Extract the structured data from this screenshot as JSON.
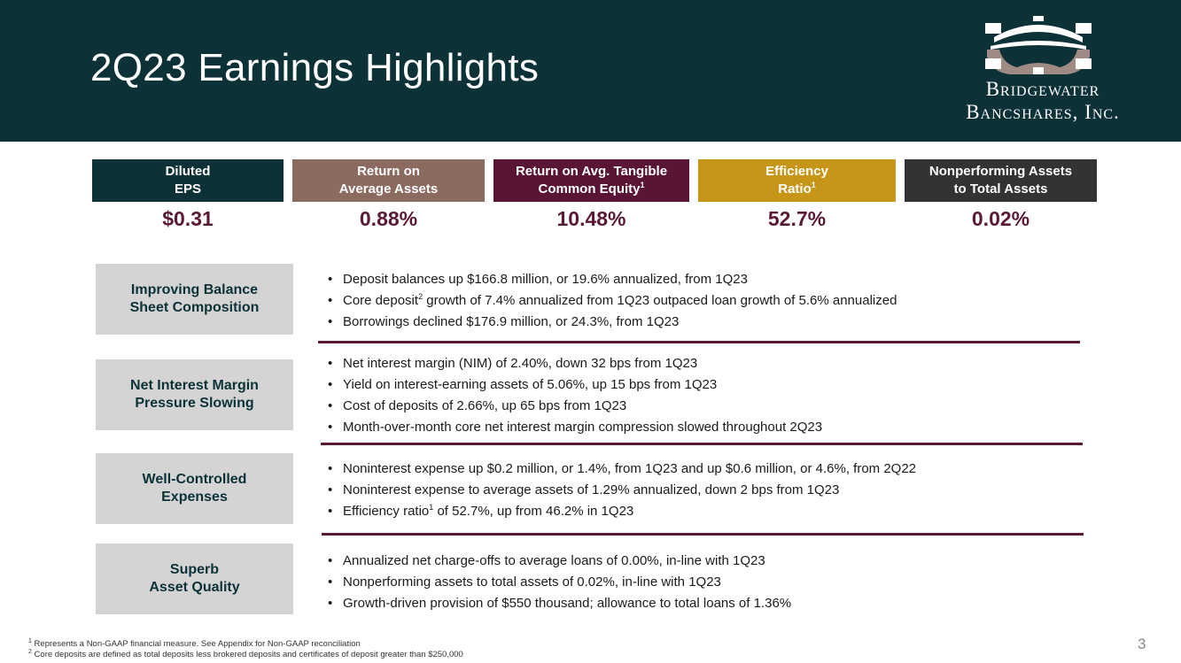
{
  "slide": {
    "title": "2Q23 Earnings Highlights",
    "page_number": "3"
  },
  "logo": {
    "line1": "Bridgewater",
    "line2": "Bancshares, Inc."
  },
  "kpis": [
    {
      "label_line1": "Diluted",
      "label_line2": "EPS",
      "sup": "",
      "value": "$0.31",
      "color": "#0c3238"
    },
    {
      "label_line1": "Return on",
      "label_line2": "Average Assets",
      "sup": "",
      "value": "0.88%",
      "color": "#8b6a5f"
    },
    {
      "label_line1": "Return on Avg. Tangible",
      "label_line2": "Common Equity",
      "sup": "1",
      "value": "10.48%",
      "color": "#5a1536"
    },
    {
      "label_line1": "Efficiency",
      "label_line2": "Ratio",
      "sup": "1",
      "value": "52.7%",
      "color": "#c79518"
    },
    {
      "label_line1": "Nonperforming Assets",
      "label_line2": "to Total Assets",
      "sup": "",
      "value": "0.02%",
      "color": "#333333"
    }
  ],
  "sections": [
    {
      "label_line1": "Improving Balance",
      "label_line2": "Sheet Composition",
      "bullets": [
        {
          "pre": "Deposit balances up $166.8 million, or 19.6% annualized, from 1Q23",
          "sup": "",
          "post": ""
        },
        {
          "pre": "Core deposit",
          "sup": "2",
          "post": " growth of 7.4% annualized from 1Q23 outpaced loan growth of 5.6% annualized"
        },
        {
          "pre": "Borrowings declined $176.9 million, or 24.3%, from 1Q23",
          "sup": "",
          "post": ""
        }
      ]
    },
    {
      "label_line1": "Net Interest Margin",
      "label_line2": "Pressure Slowing",
      "bullets": [
        {
          "pre": "Net interest margin (NIM) of 2.40%, down 32 bps from 1Q23",
          "sup": "",
          "post": ""
        },
        {
          "pre": "Yield on interest-earning assets of 5.06%, up 15 bps from 1Q23",
          "sup": "",
          "post": ""
        },
        {
          "pre": "Cost of deposits of 2.66%, up 65 bps from 1Q23",
          "sup": "",
          "post": ""
        },
        {
          "pre": "Month-over-month core net interest margin compression slowed throughout 2Q23",
          "sup": "",
          "post": ""
        }
      ]
    },
    {
      "label_line1": "Well-Controlled",
      "label_line2": "Expenses",
      "bullets": [
        {
          "pre": "Noninterest expense up $0.2 million, or 1.4%, from 1Q23 and up $0.6 million, or 4.6%, from 2Q22",
          "sup": "",
          "post": ""
        },
        {
          "pre": "Noninterest expense to average assets of 1.29% annualized, down 2 bps from 1Q23",
          "sup": "",
          "post": ""
        },
        {
          "pre": "Efficiency ratio",
          "sup": "1",
          "post": " of 52.7%, up from 46.2% in 1Q23"
        }
      ]
    },
    {
      "label_line1": "Superb",
      "label_line2": "Asset Quality",
      "bullets": [
        {
          "pre": "Annualized net charge-offs to average loans of 0.00%, in-line with 1Q23",
          "sup": "",
          "post": ""
        },
        {
          "pre": "Nonperforming assets to total assets of 0.02%, in-line with 1Q23",
          "sup": "",
          "post": ""
        },
        {
          "pre": "Growth-driven provision of $550 thousand; allowance to total loans of 1.36%",
          "sup": "",
          "post": ""
        }
      ]
    }
  ],
  "footnotes": [
    {
      "num": "1",
      "text": " Represents a Non-GAAP financial measure. See Appendix for Non-GAAP reconciliation"
    },
    {
      "num": "2",
      "text": " Core deposits are defined as total deposits less brokered deposits and certificates of deposit greater than $250,000"
    }
  ],
  "colors": {
    "header": "#0c3238",
    "accent": "#5a1a35",
    "label_bg": "#d4d4d4"
  }
}
